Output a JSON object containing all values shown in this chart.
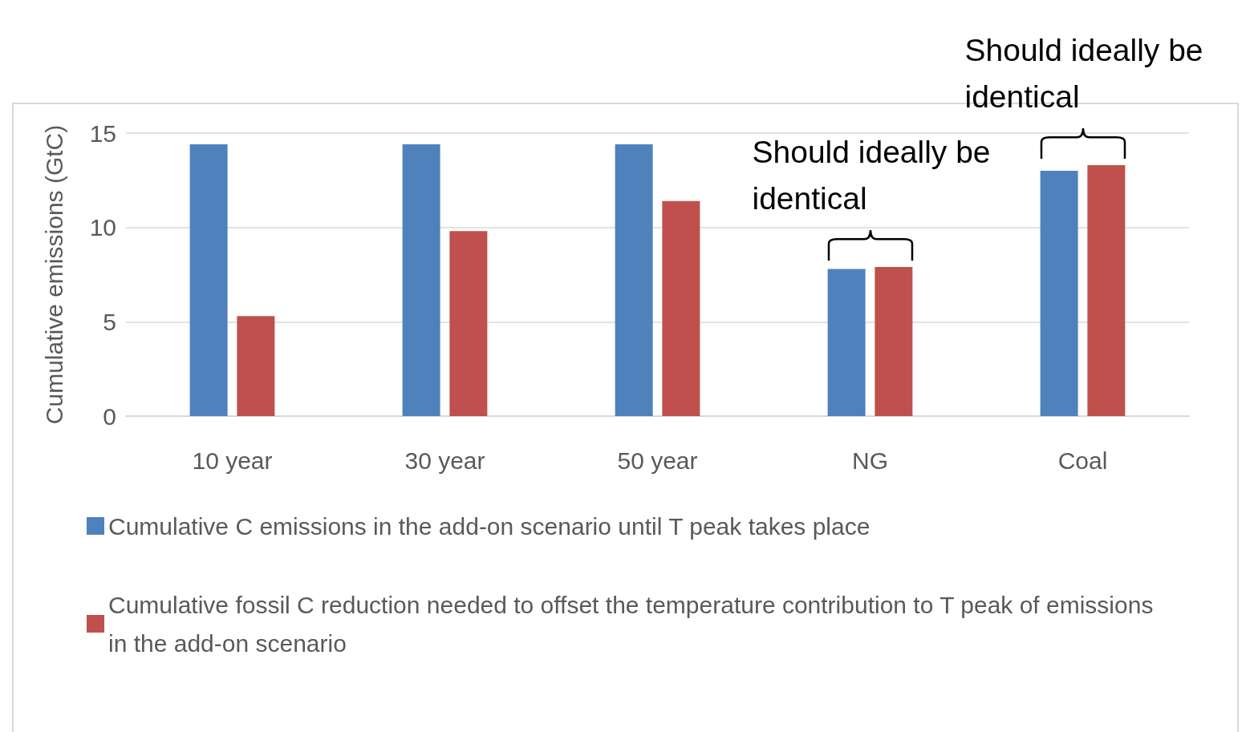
{
  "chart_data": {
    "type": "bar",
    "ylabel": "Cumulative emissions (GtC)",
    "categories": [
      "10 year",
      "30 year",
      "50 year",
      "NG",
      "Coal"
    ],
    "series": [
      {
        "name": "Cumulative C emissions in the add-on scenario until T peak takes place",
        "color": "#4f81bd",
        "values": [
          14.4,
          14.4,
          14.4,
          7.8,
          13.0
        ]
      },
      {
        "name": "Cumulative fossil C reduction needed to offset the temperature contribution to T peak of emissions in the add-on scenario",
        "color": "#c0504d",
        "values": [
          5.3,
          9.8,
          11.4,
          7.9,
          13.3
        ]
      }
    ],
    "ylim": [
      0,
      15
    ],
    "yticks": [
      0,
      5,
      10,
      15
    ],
    "grid": "y",
    "legend": "bottom",
    "annotations": [
      "Should ideally be identical",
      "Should ideally be identical"
    ]
  }
}
